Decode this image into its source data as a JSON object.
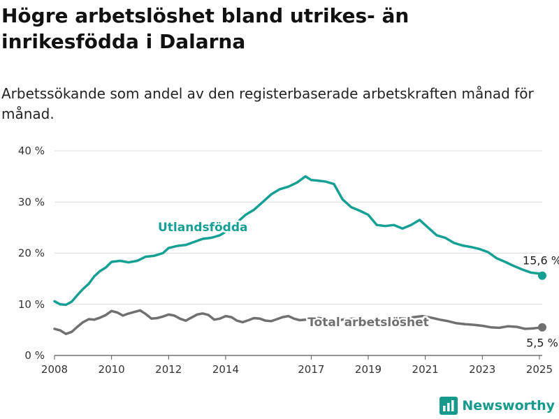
{
  "title": "Högre arbetslöshet bland utrikes- än inrikesfödda i Dalarna",
  "subtitle": "Arbetssökande som andel av den registerbaserade arbetskraften månad för månad.",
  "brand": {
    "name": "Newsworthy",
    "icon": "newsworthy-logo-icon",
    "color": "#159a8c"
  },
  "chart_data": {
    "type": "line",
    "xlabel": "",
    "ylabel": "",
    "xlim": [
      2008,
      2025.1
    ],
    "ylim": [
      0,
      40
    ],
    "y_ticks": [
      0,
      10,
      20,
      30,
      40
    ],
    "y_tick_labels": [
      "0 %",
      "10 %",
      "20 %",
      "30 %",
      "40 %"
    ],
    "x_ticks": [
      2008,
      2010,
      2012,
      2014,
      2017,
      2019,
      2021,
      2023,
      2025
    ],
    "x_tick_labels": [
      "2008",
      "2010",
      "2012",
      "2014",
      "2017",
      "2019",
      "2021",
      "2023",
      "2025"
    ],
    "grid": "horizontal",
    "legend": "inline labels",
    "series": [
      {
        "name": "Utlandsfödda",
        "color": "#16a094",
        "end_label": "15,6 %",
        "x": [
          2008.0,
          2008.2,
          2008.4,
          2008.6,
          2008.8,
          2009.0,
          2009.2,
          2009.4,
          2009.6,
          2009.8,
          2010.0,
          2010.3,
          2010.6,
          2010.9,
          2011.2,
          2011.5,
          2011.8,
          2012.0,
          2012.3,
          2012.6,
          2012.9,
          2013.2,
          2013.5,
          2013.8,
          2014.1,
          2014.4,
          2014.7,
          2015.0,
          2015.3,
          2015.6,
          2015.9,
          2016.2,
          2016.5,
          2016.8,
          2017.0,
          2017.2,
          2017.5,
          2017.8,
          2018.1,
          2018.4,
          2018.7,
          2019.0,
          2019.3,
          2019.6,
          2019.9,
          2020.2,
          2020.5,
          2020.8,
          2021.1,
          2021.4,
          2021.7,
          2022.0,
          2022.3,
          2022.6,
          2022.9,
          2023.2,
          2023.5,
          2023.8,
          2024.1,
          2024.4,
          2024.7,
          2025.0,
          2025.1
        ],
        "y": [
          10.6,
          10.0,
          9.9,
          10.5,
          11.8,
          13.0,
          14.0,
          15.5,
          16.5,
          17.2,
          18.3,
          18.5,
          18.2,
          18.5,
          19.3,
          19.5,
          20.0,
          21.0,
          21.4,
          21.6,
          22.2,
          22.8,
          23.0,
          23.5,
          24.5,
          26.0,
          27.5,
          28.5,
          30.0,
          31.5,
          32.5,
          33.0,
          33.8,
          35.0,
          34.3,
          34.2,
          34.0,
          33.5,
          30.5,
          29.0,
          28.3,
          27.5,
          25.5,
          25.3,
          25.5,
          24.8,
          25.5,
          26.5,
          25.0,
          23.5,
          23.0,
          22.0,
          21.5,
          21.2,
          20.8,
          20.2,
          19.0,
          18.3,
          17.5,
          16.8,
          16.2,
          16.0,
          15.6
        ]
      },
      {
        "name": "Total arbetslöshet",
        "color": "#707070",
        "end_label": "5,5 %",
        "x": [
          2008.0,
          2008.2,
          2008.4,
          2008.6,
          2008.8,
          2009.0,
          2009.2,
          2009.4,
          2009.6,
          2009.8,
          2010.0,
          2010.2,
          2010.4,
          2010.6,
          2010.8,
          2011.0,
          2011.2,
          2011.4,
          2011.6,
          2011.8,
          2012.0,
          2012.2,
          2012.4,
          2012.6,
          2012.8,
          2013.0,
          2013.2,
          2013.4,
          2013.6,
          2013.8,
          2014.0,
          2014.2,
          2014.4,
          2014.6,
          2014.8,
          2015.0,
          2015.2,
          2015.4,
          2015.6,
          2015.8,
          2016.0,
          2016.2,
          2016.4,
          2016.6,
          2016.8,
          2017.0,
          2017.3,
          2017.6,
          2017.9,
          2018.2,
          2018.5,
          2018.8,
          2019.1,
          2019.4,
          2019.7,
          2020.0,
          2020.3,
          2020.6,
          2020.9,
          2021.2,
          2021.5,
          2021.8,
          2022.1,
          2022.4,
          2022.7,
          2023.0,
          2023.3,
          2023.6,
          2023.9,
          2024.2,
          2024.5,
          2024.8,
          2025.1
        ],
        "y": [
          5.2,
          4.9,
          4.2,
          4.6,
          5.6,
          6.5,
          7.1,
          7.0,
          7.4,
          7.9,
          8.7,
          8.4,
          7.8,
          8.2,
          8.5,
          8.8,
          8.1,
          7.2,
          7.3,
          7.6,
          8.0,
          7.8,
          7.2,
          6.8,
          7.4,
          8.0,
          8.2,
          7.9,
          7.0,
          7.2,
          7.7,
          7.5,
          6.8,
          6.5,
          6.9,
          7.3,
          7.2,
          6.8,
          6.7,
          7.1,
          7.5,
          7.7,
          7.2,
          6.9,
          7.0,
          7.4,
          7.3,
          7.0,
          6.8,
          7.1,
          7.2,
          6.9,
          6.7,
          6.8,
          7.0,
          7.3,
          7.2,
          7.5,
          7.7,
          7.4,
          7.0,
          6.7,
          6.3,
          6.1,
          6.0,
          5.8,
          5.5,
          5.4,
          5.7,
          5.6,
          5.2,
          5.3,
          5.5
        ]
      }
    ]
  }
}
